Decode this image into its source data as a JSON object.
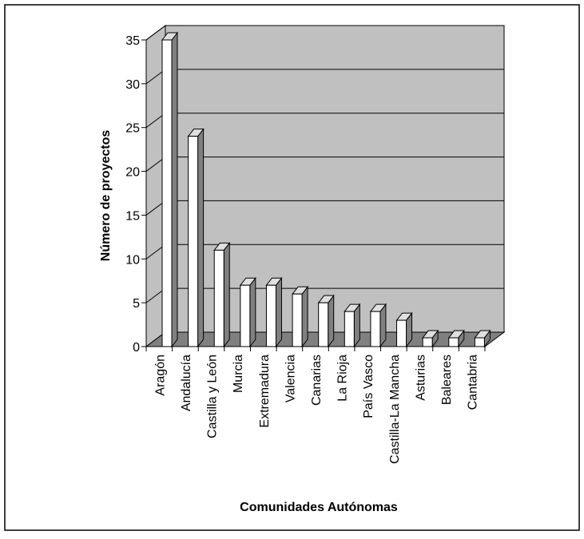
{
  "chart_data": {
    "type": "bar",
    "categories": [
      "Aragón",
      "Andalucía",
      "Castilla y León",
      "Murcia",
      "Extremadura",
      "Valencia",
      "Canarias",
      "La Rioja",
      "País Vasco",
      "Castilla-La Mancha",
      "Asturias",
      "Baleares",
      "Cantabria"
    ],
    "values": [
      35,
      24,
      11,
      7,
      7,
      6,
      5,
      4,
      4,
      3,
      1,
      1,
      1
    ],
    "title": "",
    "xlabel": "Comunidades Autónomas",
    "ylabel": "Número de proyectos",
    "ylim": [
      0,
      35
    ],
    "yticks": [
      0,
      5,
      10,
      15,
      20,
      25,
      30,
      35
    ],
    "grid": true,
    "legend": "none",
    "style": "3d-column",
    "colors": {
      "bar_front": "#ffffff",
      "bar_side": "#808080",
      "bar_top": "#e0e0e0",
      "wall": "#c0c0c0",
      "floor": "#808080",
      "frame": "#000000"
    }
  }
}
